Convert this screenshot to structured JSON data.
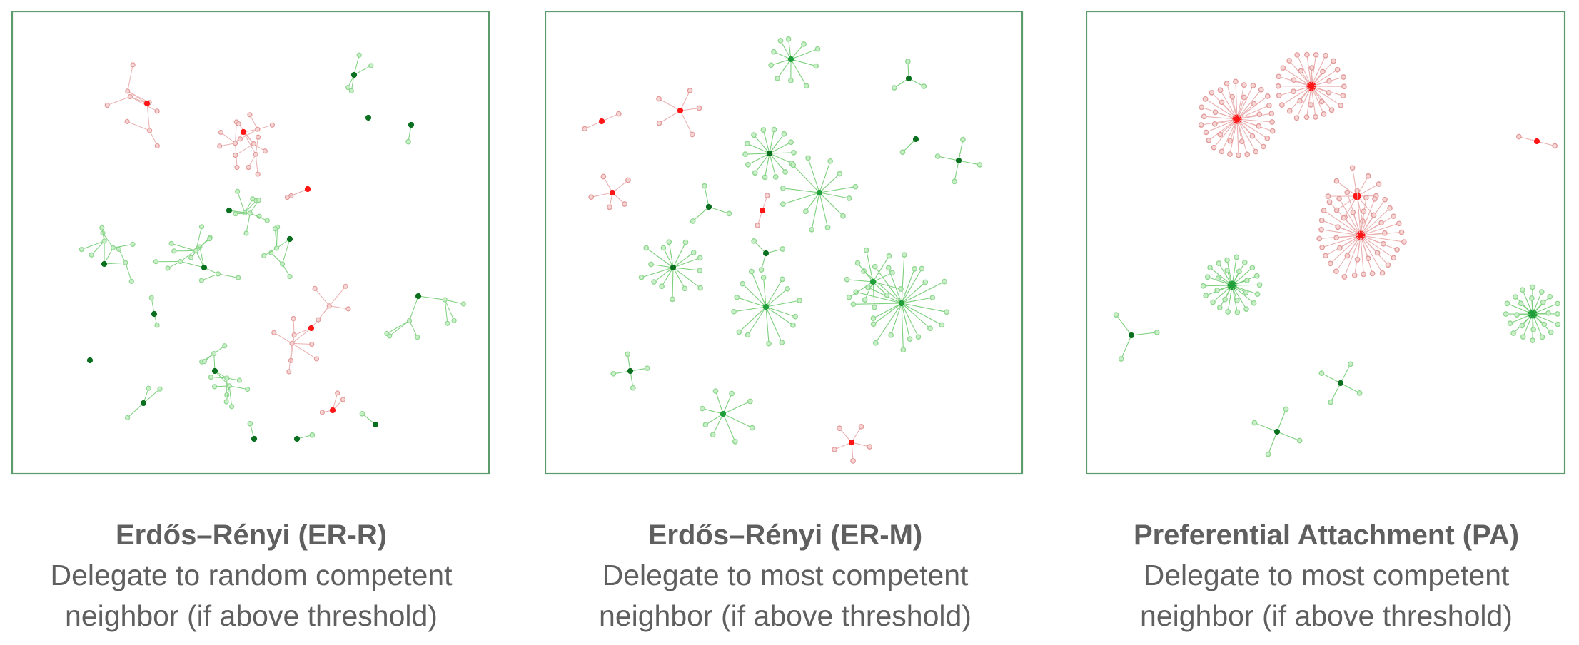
{
  "colors": {
    "frame": "#5c9c6c",
    "green_leaf": "#8fd68f",
    "green_leaf_fill": "#c9efc9",
    "green_hub": "#1f9e3a",
    "green_center": "#0a6f1f",
    "green_edge": "#7ccf7c",
    "red_leaf": "#e29a9a",
    "red_leaf_fill": "#f6d5d5",
    "red_hub": "#ff1515",
    "red_edge": "#eab0b0",
    "caption_text": "#5f5f5f"
  },
  "panels": [
    {
      "id": "er-r",
      "title": "Erdős–Rényi (ER-R)",
      "line1": "Delegate to random competent",
      "line2": "neighbor (if above threshold)",
      "style": "random-trees"
    },
    {
      "id": "er-m",
      "title": "Erdős–Rényi (ER-M)",
      "line1": "Delegate to most competent",
      "line2": "neighbor (if above threshold)",
      "style": "stars"
    },
    {
      "id": "pa",
      "title": "Preferential Attachment (PA)",
      "line1": "Delegate to most competent",
      "line2": "neighbor (if above threshold)",
      "style": "big-stars"
    }
  ]
}
